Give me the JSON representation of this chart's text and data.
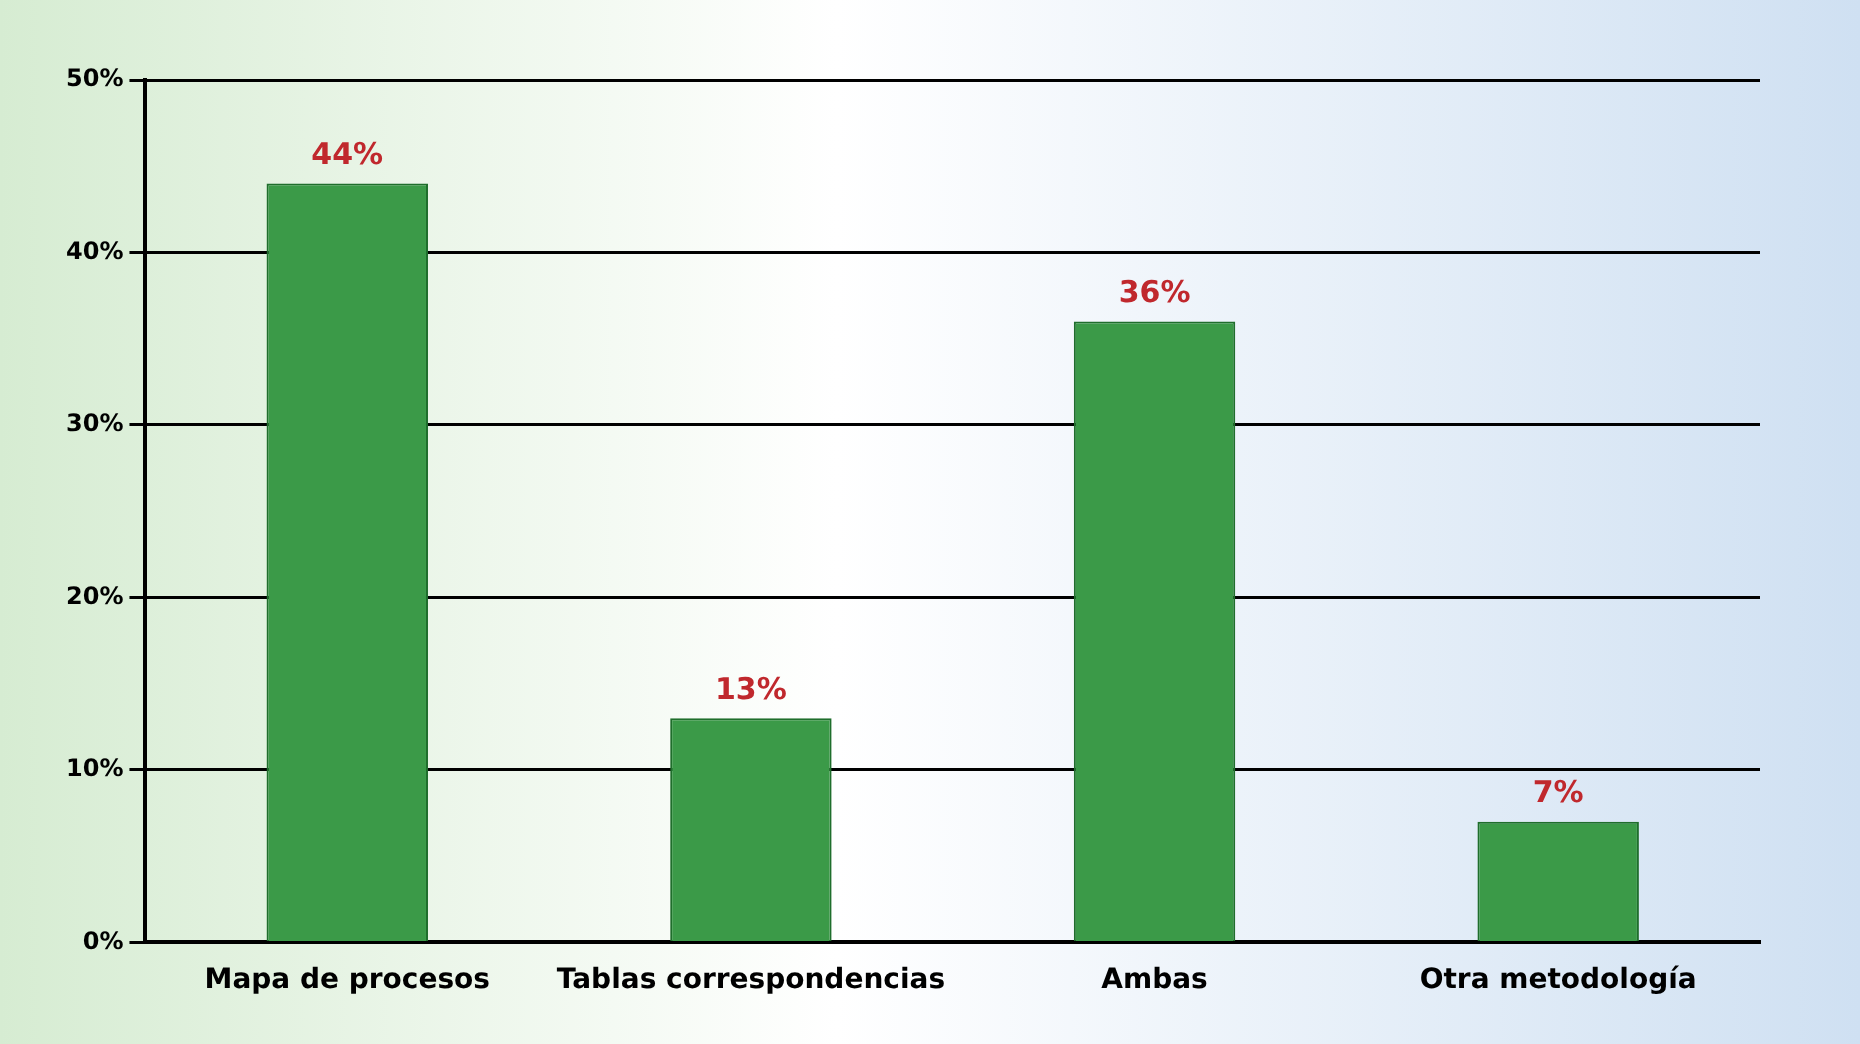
{
  "chart_data": {
    "type": "bar",
    "categories": [
      "Mapa de procesos",
      "Tablas correspondencias",
      "Ambas",
      "Otra metodología"
    ],
    "values": [
      44,
      13,
      36,
      7
    ],
    "color": "#3b9a48",
    "ylim": [
      0,
      50
    ],
    "yticks": [
      {
        "value": 0,
        "label": "0%"
      },
      {
        "value": 10,
        "label": "10%"
      },
      {
        "value": 20,
        "label": "20%"
      },
      {
        "value": 30,
        "label": "30%"
      },
      {
        "value": 40,
        "label": "40%"
      },
      {
        "value": 50,
        "label": "50%"
      }
    ],
    "value_labels": [
      "44%",
      "13%",
      "36%",
      "7%"
    ],
    "grid": "y",
    "legend": false
  }
}
